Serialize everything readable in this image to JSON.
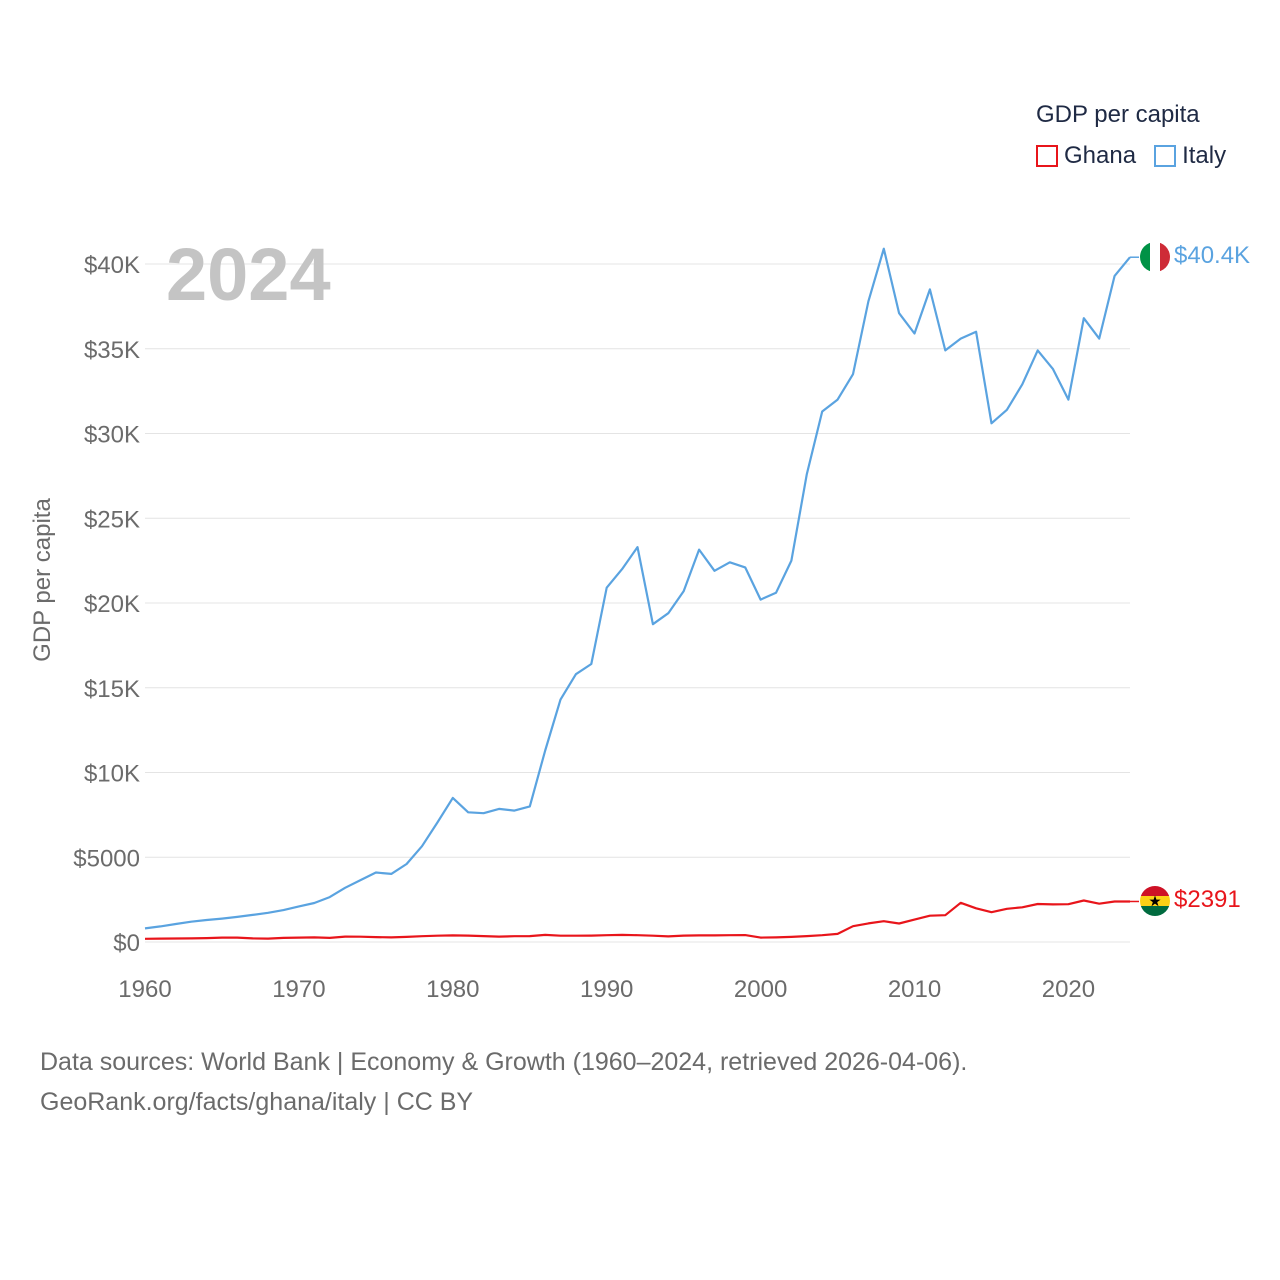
{
  "legend": {
    "title": "GDP per capita",
    "items": [
      {
        "label": "Ghana",
        "color": "#e8151b"
      },
      {
        "label": "Italy",
        "color": "#5aa3e0"
      }
    ]
  },
  "footer": {
    "line1": "Data sources: World Bank | Economy & Growth (1960–2024, retrieved 2026-04-06).",
    "line2": "GeoRank.org/facts/ghana/italy | CC BY"
  },
  "chart_data": {
    "type": "line",
    "title": "GDP per capita",
    "year_label": "2024",
    "xlabel": "",
    "ylabel": "GDP per capita",
    "xlim": [
      1960,
      2024
    ],
    "ylim": [
      0,
      40000
    ],
    "x_ticks": [
      1960,
      1970,
      1980,
      1990,
      2000,
      2010,
      2020
    ],
    "x_tick_labels": [
      "1960",
      "1970",
      "1980",
      "1990",
      "2000",
      "2010",
      "2020"
    ],
    "y_ticks": [
      0,
      5000,
      10000,
      15000,
      20000,
      25000,
      30000,
      35000,
      40000
    ],
    "y_tick_labels": [
      "$0",
      "$5000",
      "$10K",
      "$15K",
      "$20K",
      "$25K",
      "$30K",
      "$35K",
      "$40K"
    ],
    "grid": true,
    "x": [
      1960,
      1961,
      1962,
      1963,
      1964,
      1965,
      1966,
      1967,
      1968,
      1969,
      1970,
      1971,
      1972,
      1973,
      1974,
      1975,
      1976,
      1977,
      1978,
      1979,
      1980,
      1981,
      1982,
      1983,
      1984,
      1985,
      1986,
      1987,
      1988,
      1989,
      1990,
      1991,
      1992,
      1993,
      1994,
      1995,
      1996,
      1997,
      1998,
      1999,
      2000,
      2001,
      2002,
      2003,
      2004,
      2005,
      2006,
      2007,
      2008,
      2009,
      2010,
      2011,
      2012,
      2013,
      2014,
      2015,
      2016,
      2017,
      2018,
      2019,
      2020,
      2021,
      2022,
      2023,
      2024
    ],
    "series": [
      {
        "name": "Italy",
        "color": "#5aa3e0",
        "end_label": "$40.4K",
        "values": [
          800,
          920,
          1060,
          1200,
          1300,
          1380,
          1480,
          1600,
          1720,
          1880,
          2100,
          2300,
          2650,
          3200,
          3650,
          4100,
          4020,
          4600,
          5650,
          7050,
          8500,
          7650,
          7600,
          7850,
          7750,
          8000,
          11300,
          14300,
          15800,
          16400,
          20900,
          22000,
          23300,
          18750,
          19400,
          20700,
          23150,
          21900,
          22400,
          22100,
          20200,
          20600,
          22500,
          27600,
          31300,
          32000,
          33500,
          37800,
          40900,
          37100,
          35900,
          38500,
          34900,
          35600,
          36000,
          30600,
          31400,
          32900,
          34900,
          33800,
          32000,
          36800,
          35600,
          39300,
          40400
        ]
      },
      {
        "name": "Ghana",
        "color": "#e8151b",
        "end_label": "$2391",
        "values": [
          190,
          200,
          205,
          215,
          230,
          260,
          260,
          210,
          200,
          240,
          260,
          270,
          240,
          320,
          310,
          290,
          270,
          300,
          340,
          370,
          390,
          380,
          350,
          320,
          340,
          350,
          420,
          370,
          370,
          380,
          400,
          420,
          400,
          370,
          330,
          380,
          390,
          390,
          400,
          410,
          260,
          270,
          300,
          350,
          400,
          480,
          930,
          1100,
          1230,
          1090,
          1320,
          1550,
          1580,
          2310,
          1990,
          1760,
          1960,
          2050,
          2240,
          2220,
          2230,
          2450,
          2260,
          2390,
          2391
        ]
      }
    ]
  }
}
